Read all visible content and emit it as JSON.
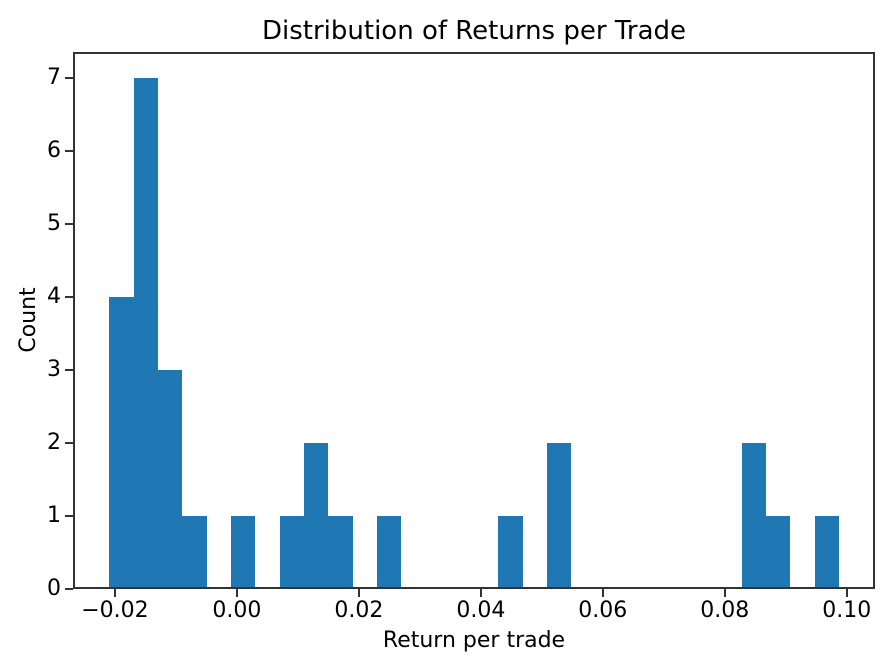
{
  "chart_data": {
    "type": "bar",
    "subtype": "histogram",
    "title": "Distribution of Returns per Trade",
    "xlabel": "Return per trade",
    "ylabel": "Count",
    "bar_color": "#1f77b4",
    "background_color": "#ffffff",
    "axis_color": "#333333",
    "text_color": "#000000",
    "bin_start": -0.0209,
    "bin_width": 0.003987,
    "num_bins": 30,
    "counts": [
      4,
      7,
      3,
      1,
      0,
      1,
      0,
      1,
      2,
      1,
      0,
      1,
      0,
      0,
      0,
      0,
      1,
      0,
      2,
      0,
      0,
      0,
      0,
      0,
      0,
      0,
      2,
      1,
      0,
      1
    ],
    "xlim": [
      -0.026878,
      0.104638
    ],
    "ylim": [
      0,
      7.35
    ],
    "x_ticks": [
      -0.02,
      0.0,
      0.02,
      0.04,
      0.06,
      0.08,
      0.1
    ],
    "x_tick_labels": [
      "−0.02",
      "0.00",
      "0.02",
      "0.04",
      "0.06",
      "0.08",
      "0.10"
    ],
    "y_ticks": [
      0,
      1,
      2,
      3,
      4,
      5,
      6,
      7
    ],
    "y_tick_labels": [
      "0",
      "1",
      "2",
      "3",
      "4",
      "5",
      "6",
      "7"
    ],
    "grid": false,
    "legend": null
  }
}
